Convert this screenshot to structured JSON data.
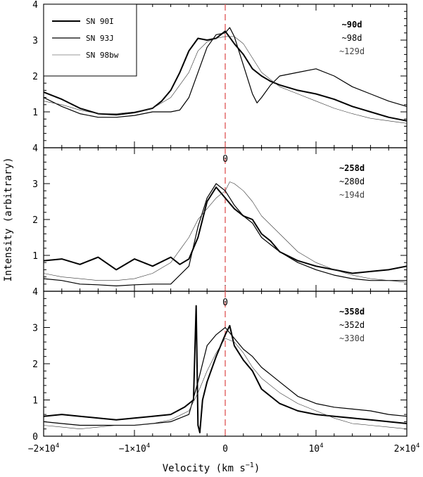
{
  "chart_data": {
    "type": "line",
    "xlabel": "Velocity (km s",
    "xlabel_sup": "−1",
    "xlabel_close": ")",
    "ylabel": "Intensity (arbitrary)",
    "xlim": [
      -20000,
      20000
    ],
    "x_ticks": [
      {
        "value": -20000,
        "base": "−2×10",
        "sup": "4"
      },
      {
        "value": -10000,
        "base": "−1×10",
        "sup": "4"
      },
      {
        "value": 0,
        "base": "0",
        "sup": ""
      },
      {
        "value": 10000,
        "base": "10",
        "sup": "4"
      },
      {
        "value": 20000,
        "base": "2×10",
        "sup": "4"
      }
    ],
    "reference_line": {
      "x": 0,
      "style": "dashed",
      "color": "#e06060"
    },
    "series_styles": [
      {
        "name": "SN 90I",
        "width": 2.0,
        "color": "#000000"
      },
      {
        "name": "SN 93J",
        "width": 1.2,
        "color": "#000000"
      },
      {
        "name": "SN 98bw",
        "width": 0.6,
        "color": "#333333"
      }
    ],
    "panels": [
      {
        "ylim": [
          0,
          4
        ],
        "y_tick_labels": [
          {
            "value": 1,
            "text": "1"
          },
          {
            "value": 2,
            "text": "2"
          },
          {
            "value": 3,
            "text": "3"
          },
          {
            "value": 4,
            "text": "4"
          }
        ],
        "zero_marker": "",
        "legend": [
          "SN 90I",
          "SN 93J",
          "SN 98bw"
        ],
        "epochs": [
          "~90d",
          "~98d",
          "~129d"
        ],
        "series": [
          {
            "name": "SN 90I",
            "x": [
              -20000,
              -18000,
              -16000,
              -14000,
              -12000,
              -10000,
              -8000,
              -7000,
              -6000,
              -5000,
              -4000,
              -3000,
              -2000,
              -1000,
              0,
              1000,
              2000,
              3000,
              4000,
              5000,
              6000,
              8000,
              10000,
              12000,
              14000,
              16000,
              18000,
              20000
            ],
            "y": [
              1.55,
              1.35,
              1.1,
              0.95,
              0.92,
              0.98,
              1.1,
              1.3,
              1.6,
              2.1,
              2.7,
              3.05,
              3.0,
              3.05,
              3.25,
              2.9,
              2.6,
              2.2,
              2.0,
              1.85,
              1.75,
              1.6,
              1.5,
              1.35,
              1.15,
              1.0,
              0.85,
              0.75
            ]
          },
          {
            "name": "SN 93J",
            "x": [
              -20000,
              -18000,
              -16000,
              -14000,
              -12000,
              -10000,
              -8000,
              -6000,
              -5000,
              -4000,
              -3000,
              -2000,
              -1000,
              0,
              500,
              1000,
              2000,
              3000,
              3500,
              4000,
              5000,
              6000,
              8000,
              10000,
              12000,
              14000,
              16000,
              18000,
              20000
            ],
            "y": [
              1.4,
              1.15,
              0.95,
              0.85,
              0.85,
              0.9,
              1.0,
              1.0,
              1.05,
              1.4,
              2.1,
              2.8,
              3.15,
              3.2,
              3.35,
              3.1,
              2.3,
              1.5,
              1.25,
              1.4,
              1.75,
              2.0,
              2.1,
              2.2,
              2.0,
              1.7,
              1.5,
              1.3,
              1.15
            ]
          },
          {
            "name": "SN 98bw",
            "x": [
              -20000,
              -18000,
              -16000,
              -14000,
              -12000,
              -10000,
              -8000,
              -6000,
              -4000,
              -3000,
              -2000,
              -1000,
              0,
              1000,
              2000,
              3000,
              4000,
              6000,
              8000,
              10000,
              12000,
              14000,
              16000,
              18000,
              20000
            ],
            "y": [
              1.3,
              1.2,
              1.05,
              0.95,
              0.95,
              1.0,
              1.1,
              1.4,
              2.1,
              2.7,
              2.95,
              3.05,
              3.1,
              3.1,
              2.9,
              2.5,
              2.1,
              1.7,
              1.5,
              1.3,
              1.1,
              0.95,
              0.82,
              0.75,
              0.68
            ]
          }
        ]
      },
      {
        "ylim": [
          0,
          4
        ],
        "y_tick_labels": [
          {
            "value": 1,
            "text": "1"
          },
          {
            "value": 2,
            "text": "2"
          },
          {
            "value": 3,
            "text": "3"
          },
          {
            "value": 4,
            "text": "4"
          }
        ],
        "zero_marker": "0",
        "legend": [],
        "epochs": [
          "~258d",
          "~280d",
          "~194d"
        ],
        "series": [
          {
            "name": "SN 90I",
            "x": [
              -20000,
              -18000,
              -16000,
              -14000,
              -12000,
              -10000,
              -8000,
              -6000,
              -5000,
              -4000,
              -3000,
              -2000,
              -1000,
              0,
              1000,
              2000,
              3000,
              4000,
              5000,
              6000,
              8000,
              10000,
              12000,
              14000,
              16000,
              18000,
              20000
            ],
            "y": [
              0.85,
              0.9,
              0.75,
              0.95,
              0.6,
              0.9,
              0.7,
              0.95,
              0.75,
              0.9,
              1.5,
              2.5,
              2.9,
              2.6,
              2.3,
              2.1,
              2.0,
              1.6,
              1.4,
              1.1,
              0.85,
              0.7,
              0.6,
              0.5,
              0.55,
              0.6,
              0.7
            ]
          },
          {
            "name": "SN 93J",
            "x": [
              -20000,
              -18000,
              -16000,
              -14000,
              -12000,
              -10000,
              -8000,
              -6000,
              -4000,
              -3000,
              -2000,
              -1000,
              0,
              1000,
              2000,
              3000,
              4000,
              6000,
              8000,
              10000,
              12000,
              14000,
              16000,
              18000,
              20000
            ],
            "y": [
              0.35,
              0.3,
              0.2,
              0.18,
              0.15,
              0.18,
              0.2,
              0.2,
              0.7,
              1.8,
              2.6,
              3.0,
              2.8,
              2.4,
              2.1,
              1.9,
              1.5,
              1.1,
              0.8,
              0.6,
              0.45,
              0.35,
              0.3,
              0.3,
              0.3
            ]
          },
          {
            "name": "SN 98bw",
            "x": [
              -20000,
              -18000,
              -16000,
              -14000,
              -12000,
              -10000,
              -8000,
              -6000,
              -4000,
              -3000,
              -2000,
              -1000,
              0,
              500,
              1000,
              2000,
              3000,
              4000,
              6000,
              8000,
              10000,
              12000,
              14000,
              16000,
              18000,
              20000
            ],
            "y": [
              0.5,
              0.4,
              0.35,
              0.3,
              0.3,
              0.35,
              0.5,
              0.8,
              1.5,
              2.0,
              2.3,
              2.6,
              2.8,
              3.05,
              3.0,
              2.8,
              2.5,
              2.1,
              1.6,
              1.1,
              0.8,
              0.6,
              0.45,
              0.35,
              0.3,
              0.25
            ]
          }
        ]
      },
      {
        "ylim": [
          0,
          4
        ],
        "y_tick_labels": [
          {
            "value": 0,
            "text": "0"
          },
          {
            "value": 1,
            "text": "1"
          },
          {
            "value": 2,
            "text": "2"
          },
          {
            "value": 3,
            "text": "3"
          },
          {
            "value": 4,
            "text": "4"
          }
        ],
        "zero_marker": "0",
        "legend": [],
        "epochs": [
          "~358d",
          "~352d",
          "~330d"
        ],
        "series": [
          {
            "name": "SN 90I",
            "x": [
              -20000,
              -18000,
              -16000,
              -14000,
              -12000,
              -10000,
              -8000,
              -6000,
              -4500,
              -3500,
              -3200,
              -3000,
              -2800,
              -2500,
              -2000,
              -1000,
              0,
              500,
              1000,
              2000,
              3000,
              4000,
              6000,
              8000,
              10000,
              12000,
              14000,
              16000,
              18000,
              20000
            ],
            "y": [
              0.55,
              0.6,
              0.55,
              0.5,
              0.45,
              0.5,
              0.55,
              0.6,
              0.8,
              1.0,
              3.6,
              0.3,
              0.1,
              1.0,
              1.5,
              2.2,
              2.8,
              3.05,
              2.5,
              2.1,
              1.8,
              1.3,
              0.9,
              0.7,
              0.6,
              0.55,
              0.5,
              0.45,
              0.4,
              0.35
            ]
          },
          {
            "name": "SN 93J",
            "x": [
              -20000,
              -18000,
              -16000,
              -14000,
              -12000,
              -10000,
              -8000,
              -6000,
              -4000,
              -3000,
              -2000,
              -1000,
              0,
              1000,
              2000,
              3000,
              4000,
              6000,
              8000,
              10000,
              12000,
              14000,
              16000,
              18000,
              20000
            ],
            "y": [
              0.4,
              0.35,
              0.3,
              0.3,
              0.3,
              0.3,
              0.35,
              0.4,
              0.6,
              1.5,
              2.5,
              2.8,
              3.0,
              2.7,
              2.4,
              2.2,
              1.9,
              1.5,
              1.1,
              0.9,
              0.8,
              0.75,
              0.7,
              0.6,
              0.55
            ]
          },
          {
            "name": "SN 98bw",
            "x": [
              -20000,
              -18000,
              -16000,
              -14000,
              -12000,
              -10000,
              -8000,
              -6000,
              -4000,
              -3000,
              -2000,
              -1000,
              0,
              1000,
              2000,
              3000,
              4000,
              6000,
              8000,
              10000,
              12000,
              14000,
              16000,
              18000,
              20000
            ],
            "y": [
              0.3,
              0.25,
              0.2,
              0.25,
              0.3,
              0.3,
              0.35,
              0.45,
              0.7,
              1.2,
              1.8,
              2.3,
              2.7,
              2.6,
              2.3,
              1.9,
              1.6,
              1.2,
              0.9,
              0.7,
              0.5,
              0.35,
              0.3,
              0.25,
              0.2
            ]
          }
        ]
      }
    ]
  }
}
